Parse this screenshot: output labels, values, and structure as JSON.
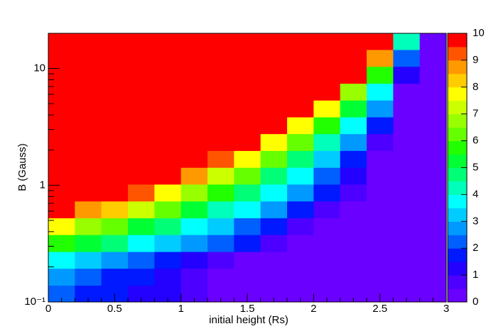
{
  "chart_data": {
    "type": "heatmap",
    "x_label": "initial height (Rs)",
    "y_label": "B (Gauss)",
    "xlim": [
      0,
      3
    ],
    "xticks": [
      0,
      0.5,
      1,
      1.5,
      2,
      2.5,
      3
    ],
    "xminorticks": [
      0.1,
      0.2,
      0.3,
      0.4,
      0.6,
      0.7,
      0.8,
      0.9,
      1.1,
      1.2,
      1.3,
      1.4,
      1.6,
      1.7,
      1.8,
      1.9,
      2.1,
      2.2,
      2.3,
      2.4,
      2.6,
      2.7,
      2.8,
      2.9
    ],
    "ylim": [
      0.1,
      20
    ],
    "y_log": true,
    "yticks": [
      {
        "value": 0.1,
        "label": "10⁻¹"
      },
      1,
      10
    ],
    "yminorticks": [
      0.2,
      0.3,
      0.4,
      0.5,
      0.6,
      0.7,
      0.8,
      0.9,
      2,
      3,
      4,
      5,
      6,
      7,
      8,
      9,
      20
    ],
    "xedges": [
      0,
      0.2,
      0.4,
      0.6,
      0.8,
      1,
      1.2,
      1.4,
      1.6,
      1.8,
      2,
      2.2,
      2.4,
      2.6,
      2.8,
      3
    ],
    "yedges": [
      0.1,
      0.139,
      0.194,
      0.27,
      0.377,
      0.525,
      0.731,
      1.02,
      1.42,
      1.98,
      2.76,
      3.84,
      5.35,
      7.45,
      10.4,
      14.5,
      20
    ],
    "z": [
      [
        2.1,
        1.9,
        1.6,
        1.3,
        1.0,
        0.7,
        0.4,
        0.4,
        0.4,
        0.4,
        0.4,
        0.4,
        0.4,
        0.4,
        0.4
      ],
      [
        2.5,
        2.2,
        1.8,
        1.5,
        1.1,
        0.8,
        0.4,
        0.4,
        0.4,
        0.4,
        0.4,
        0.4,
        0.4,
        0.4,
        0.4
      ],
      [
        3.5,
        3.0,
        2.6,
        2.1,
        1.7,
        1.2,
        0.8,
        0.4,
        0.4,
        0.4,
        0.4,
        0.4,
        0.4,
        0.4,
        0.4
      ],
      [
        5.7,
        5.1,
        4.5,
        3.9,
        3.3,
        2.7,
        2.1,
        1.5,
        0.9,
        0.4,
        0.4,
        0.4,
        0.4,
        0.4,
        0.4
      ],
      [
        7.6,
        6.9,
        6.1,
        5.4,
        4.6,
        3.9,
        3.2,
        2.4,
        1.7,
        0.9,
        0.4,
        0.4,
        0.4,
        0.4,
        0.4
      ],
      [
        9.8,
        8.9,
        8.0,
        7.1,
        6.2,
        5.3,
        4.4,
        3.6,
        2.7,
        1.8,
        0.9,
        0.4,
        0.4,
        0.4,
        0.4
      ],
      [
        10,
        10,
        10,
        9.0,
        7.9,
        6.9,
        5.9,
        4.9,
        3.8,
        2.8,
        1.8,
        0.8,
        0.4,
        0.4,
        0.4
      ],
      [
        10,
        10,
        10,
        10,
        9.7,
        8.5,
        7.3,
        6.1,
        4.8,
        3.6,
        2.4,
        1.2,
        0.4,
        0.4,
        0.4
      ],
      [
        10,
        10,
        10,
        10,
        10,
        10,
        9.3,
        7.8,
        6.3,
        4.8,
        3.3,
        1.9,
        0.4,
        0.4,
        0.4
      ],
      [
        10,
        10,
        10,
        10,
        10,
        10,
        10,
        9.6,
        7.8,
        6.1,
        4.3,
        2.6,
        0.9,
        0.4,
        0.4
      ],
      [
        10,
        10,
        10,
        10,
        10,
        10,
        10,
        10,
        10,
        7.9,
        5.8,
        3.7,
        1.6,
        0.4,
        0.4
      ],
      [
        10,
        10,
        10,
        10,
        10,
        10,
        10,
        10,
        10,
        10,
        7.5,
        5.0,
        2.5,
        0.4,
        0.4
      ],
      [
        10,
        10,
        10,
        10,
        10,
        10,
        10,
        10,
        10,
        10,
        10,
        6.8,
        3.5,
        0.4,
        0.4
      ],
      [
        10,
        10,
        10,
        10,
        10,
        10,
        10,
        10,
        10,
        10,
        10,
        10,
        5.6,
        1.1,
        0.4
      ],
      [
        10,
        10,
        10,
        10,
        10,
        10,
        10,
        10,
        10,
        10,
        10,
        10,
        8.5,
        2.4,
        0.4
      ],
      [
        10,
        10,
        10,
        10,
        10,
        10,
        10,
        10,
        10,
        10,
        10,
        10,
        10,
        4.0,
        0.4
      ]
    ],
    "zlim": [
      0,
      10
    ],
    "zticks": [
      0,
      1,
      2,
      3,
      4,
      5,
      6,
      7,
      8,
      9,
      10
    ],
    "palette": [
      "#6a00ff",
      "#4d00ff",
      "#2400ff",
      "#0019ff",
      "#0060ff",
      "#0099ff",
      "#00ccff",
      "#00ffff",
      "#00ffbb",
      "#00ff77",
      "#00ff33",
      "#22ff00",
      "#66ff00",
      "#99ff00",
      "#ccff00",
      "#ffff00",
      "#ffcc00",
      "#ff9900",
      "#ff5500",
      "#ff0000"
    ]
  }
}
